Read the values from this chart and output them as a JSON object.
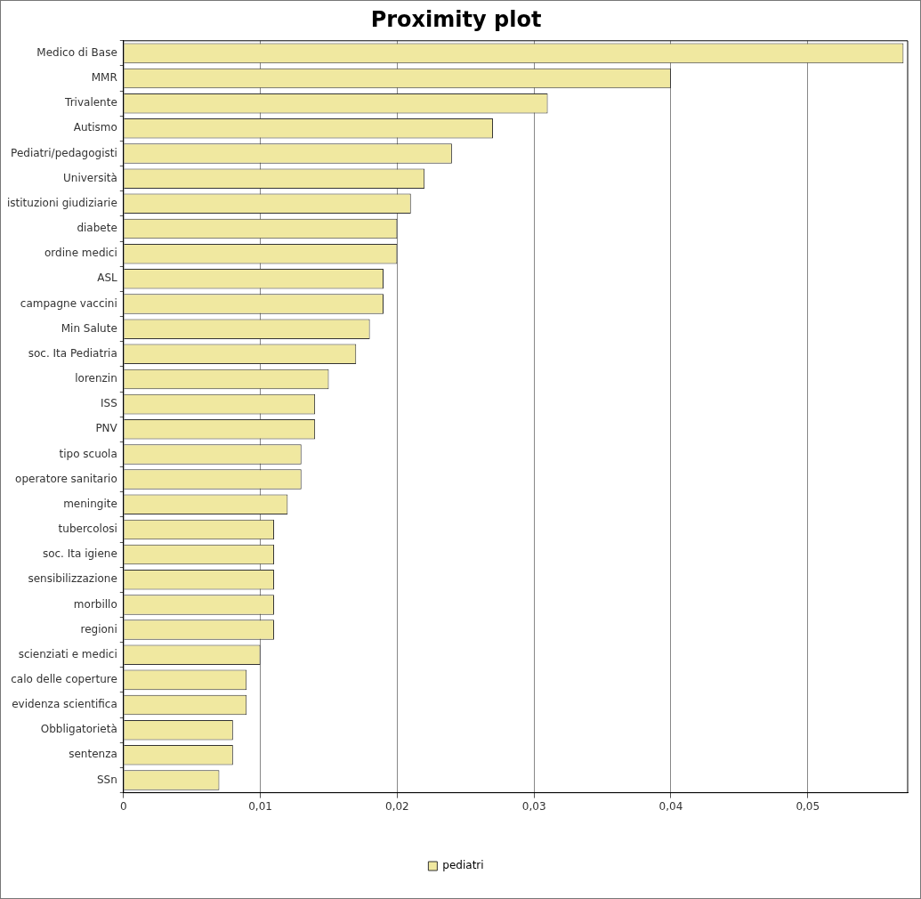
{
  "chart_data": {
    "type": "bar",
    "title": "Proximity plot",
    "orientation": "horizontal",
    "categories": [
      "Medico di Base",
      "MMR",
      "Trivalente",
      "Autismo",
      "Pediatri/pedagogisti",
      "Università",
      "istituzioni giudiziarie",
      "diabete",
      "ordine medici",
      "ASL",
      "campagne vaccini",
      "Min Salute",
      "soc. Ita Pediatria",
      "lorenzin",
      "ISS",
      "PNV",
      "tipo scuola",
      "operatore sanitario",
      "meningite",
      "tubercolosi",
      "soc. Ita igiene",
      "sensibilizzazione",
      "morbillo",
      "regioni",
      "scienziati e medici",
      "calo delle coperture",
      "evidenza scientifica",
      "Obbligatorietà",
      "sentenza",
      "SSn"
    ],
    "series": [
      {
        "name": "pediatri",
        "color": "#f0e8a0",
        "values": [
          0.057,
          0.04,
          0.031,
          0.027,
          0.024,
          0.022,
          0.021,
          0.02,
          0.02,
          0.019,
          0.019,
          0.018,
          0.017,
          0.015,
          0.014,
          0.014,
          0.013,
          0.013,
          0.012,
          0.011,
          0.011,
          0.011,
          0.011,
          0.011,
          0.01,
          0.009,
          0.009,
          0.008,
          0.008,
          0.007
        ]
      }
    ],
    "xlim": [
      0,
      0.0573
    ],
    "xticks": [
      {
        "value": 0,
        "label": "0"
      },
      {
        "value": 0.01,
        "label": "0,01"
      },
      {
        "value": 0.02,
        "label": "0,02"
      },
      {
        "value": 0.03,
        "label": "0,03"
      },
      {
        "value": 0.04,
        "label": "0,04"
      },
      {
        "value": 0.05,
        "label": "0,05"
      }
    ],
    "grid": "x",
    "legend": "bottom"
  }
}
